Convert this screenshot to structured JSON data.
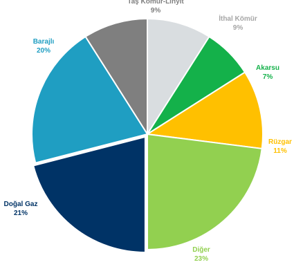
{
  "chart_data": {
    "type": "pie",
    "slices": [
      {
        "label": "Taş Kömür-Linyit",
        "pct_label": "9%",
        "value": 9,
        "color": "#7f7f7f"
      },
      {
        "label": "İthal Kömür",
        "pct_label": "9%",
        "value": 9,
        "color": "#d9dde0"
      },
      {
        "label": "Akarsu",
        "pct_label": "7%",
        "value": 7,
        "color": "#14b14a"
      },
      {
        "label": "Rüzgar",
        "pct_label": "11%",
        "value": 11,
        "color": "#ffc000"
      },
      {
        "label": "Diğer",
        "pct_label": "23%",
        "value": 23,
        "color": "#92d050"
      },
      {
        "label": "Doğal Gaz",
        "pct_label": "21%",
        "value": 21,
        "color": "#003366"
      },
      {
        "label": "Barajlı",
        "pct_label": "20%",
        "value": 20,
        "color": "#1f9ec2"
      }
    ],
    "label_colors": {
      "Taş Kömür-Linyit": "#7f7f7f",
      "İthal Kömür": "#a6a6a6",
      "Akarsu": "#14b14a",
      "Rüzgar": "#ffc000",
      "Diğer": "#92d050",
      "Doğal Gaz": "#003366",
      "Barajlı": "#1f9ec2"
    }
  }
}
